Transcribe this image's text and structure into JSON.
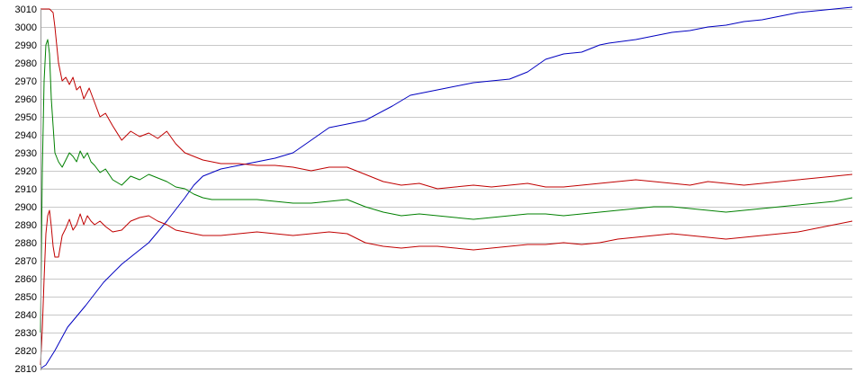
{
  "chart_data": {
    "type": "line",
    "title": "",
    "xlabel": "",
    "ylabel": "",
    "ylim": [
      2810,
      3010
    ],
    "xlim": [
      0,
      450
    ],
    "yticks": [
      2810,
      2820,
      2830,
      2840,
      2850,
      2860,
      2870,
      2880,
      2890,
      2900,
      2910,
      2920,
      2930,
      2940,
      2950,
      2960,
      2970,
      2980,
      2990,
      3000,
      3010
    ],
    "ytick_labels": [
      "2810",
      "2820",
      "2830",
      "2840",
      "2850",
      "2860",
      "2870",
      "2880",
      "2890",
      "2900",
      "2910",
      "2920",
      "2930",
      "2940",
      "2950",
      "2960",
      "2970",
      "2980",
      "2990",
      "3000",
      "3010"
    ],
    "grid": "horizontal",
    "legend": "none",
    "series": [
      {
        "key": "blue",
        "color": "#0000c0",
        "x": [
          0,
          3,
          8,
          15,
          25,
          35,
          45,
          55,
          60,
          70,
          80,
          85,
          90,
          100,
          110,
          120,
          130,
          140,
          150,
          160,
          170,
          180,
          195,
          205,
          215,
          220,
          225,
          235,
          240,
          250,
          260,
          270,
          280,
          290,
          300,
          305,
          310,
          315,
          330,
          340,
          350,
          360,
          370,
          380,
          390,
          400,
          410,
          420,
          430,
          440,
          450
        ],
        "y": [
          2810,
          2812,
          2820,
          2833,
          2845,
          2858,
          2868,
          2876,
          2880,
          2892,
          2905,
          2912,
          2917,
          2921,
          2923,
          2925,
          2927,
          2930,
          2937,
          2944,
          2946,
          2948,
          2956,
          2962,
          2964,
          2965,
          2966,
          2968,
          2969,
          2970,
          2971,
          2975,
          2982,
          2985,
          2986,
          2988,
          2990,
          2991,
          2993,
          2995,
          2997,
          2998,
          3000,
          3001,
          3003,
          3004,
          3006,
          3008,
          3009,
          3010,
          3011
        ]
      },
      {
        "key": "red-upper",
        "color": "#c00000",
        "x": [
          0,
          5,
          7,
          8,
          10,
          12,
          14,
          16,
          18,
          20,
          22,
          24,
          27,
          30,
          33,
          36,
          40,
          45,
          50,
          55,
          60,
          65,
          70,
          75,
          80,
          85,
          90,
          95,
          100,
          110,
          120,
          130,
          140,
          150,
          160,
          170,
          180,
          190,
          200,
          210,
          220,
          230,
          240,
          250,
          260,
          270,
          280,
          290,
          300,
          310,
          320,
          330,
          340,
          350,
          360,
          370,
          380,
          390,
          400,
          410,
          420,
          430,
          440,
          450
        ],
        "y": [
          3010,
          3010,
          3008,
          3000,
          2980,
          2970,
          2972,
          2968,
          2972,
          2965,
          2967,
          2960,
          2966,
          2958,
          2950,
          2952,
          2945,
          2937,
          2942,
          2939,
          2941,
          2938,
          2942,
          2935,
          2930,
          2928,
          2926,
          2925,
          2924,
          2924,
          2923,
          2923,
          2922,
          2920,
          2922,
          2922,
          2918,
          2914,
          2912,
          2913,
          2910,
          2911,
          2912,
          2911,
          2912,
          2913,
          2911,
          2911,
          2912,
          2913,
          2914,
          2915,
          2914,
          2913,
          2912,
          2914,
          2913,
          2912,
          2913,
          2914,
          2915,
          2916,
          2917,
          2918
        ]
      },
      {
        "key": "green",
        "color": "#008000",
        "x": [
          0,
          1,
          2,
          3,
          4,
          5,
          6,
          7,
          8,
          10,
          12,
          14,
          16,
          18,
          20,
          22,
          24,
          26,
          28,
          30,
          33,
          36,
          40,
          45,
          50,
          55,
          60,
          65,
          70,
          75,
          80,
          85,
          90,
          95,
          100,
          110,
          120,
          130,
          140,
          150,
          160,
          170,
          180,
          190,
          200,
          210,
          220,
          230,
          240,
          250,
          260,
          270,
          280,
          290,
          300,
          310,
          320,
          330,
          340,
          350,
          360,
          370,
          380,
          390,
          400,
          410,
          420,
          430,
          440,
          450
        ],
        "y": [
          2830,
          2920,
          2970,
          2990,
          2993,
          2985,
          2960,
          2945,
          2930,
          2925,
          2922,
          2926,
          2930,
          2928,
          2925,
          2931,
          2927,
          2930,
          2925,
          2923,
          2919,
          2921,
          2915,
          2912,
          2917,
          2915,
          2918,
          2916,
          2914,
          2911,
          2910,
          2907,
          2905,
          2904,
          2904,
          2904,
          2904,
          2903,
          2902,
          2902,
          2903,
          2904,
          2900,
          2897,
          2895,
          2896,
          2895,
          2894,
          2893,
          2894,
          2895,
          2896,
          2896,
          2895,
          2896,
          2897,
          2898,
          2899,
          2900,
          2900,
          2899,
          2898,
          2897,
          2898,
          2899,
          2900,
          2901,
          2902,
          2903,
          2905
        ]
      },
      {
        "key": "red-lower",
        "color": "#c00000",
        "x": [
          0,
          1,
          2,
          3,
          4,
          5,
          6,
          7,
          8,
          10,
          12,
          14,
          16,
          18,
          20,
          22,
          24,
          26,
          28,
          30,
          33,
          36,
          40,
          45,
          50,
          55,
          60,
          65,
          70,
          75,
          80,
          85,
          90,
          95,
          100,
          110,
          120,
          130,
          140,
          150,
          160,
          170,
          180,
          190,
          200,
          210,
          220,
          230,
          240,
          250,
          260,
          270,
          280,
          290,
          300,
          310,
          320,
          330,
          340,
          350,
          360,
          370,
          380,
          390,
          400,
          410,
          420,
          430,
          440,
          450
        ],
        "y": [
          2812,
          2832,
          2860,
          2885,
          2895,
          2898,
          2889,
          2878,
          2872,
          2872,
          2884,
          2888,
          2893,
          2887,
          2890,
          2896,
          2890,
          2895,
          2892,
          2890,
          2892,
          2889,
          2886,
          2887,
          2892,
          2894,
          2895,
          2892,
          2890,
          2887,
          2886,
          2885,
          2884,
          2884,
          2884,
          2885,
          2886,
          2885,
          2884,
          2885,
          2886,
          2885,
          2880,
          2878,
          2877,
          2878,
          2878,
          2877,
          2876,
          2877,
          2878,
          2879,
          2879,
          2880,
          2879,
          2880,
          2882,
          2883,
          2884,
          2885,
          2884,
          2883,
          2882,
          2883,
          2884,
          2885,
          2886,
          2888,
          2890,
          2892
        ]
      }
    ]
  }
}
